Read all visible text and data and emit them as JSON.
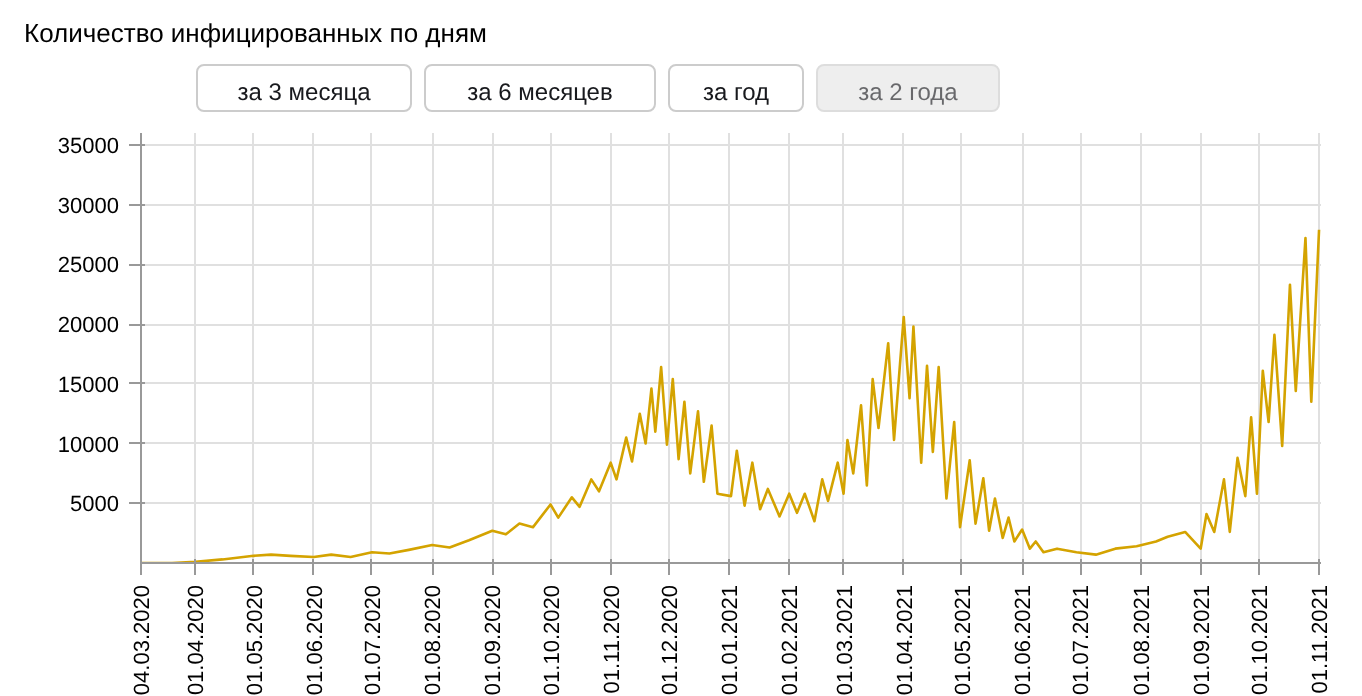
{
  "chart_data": {
    "type": "line",
    "title": "Количество инфицированных по дням",
    "annotations": [
      "за 3 месяца",
      "за 6 месяцев",
      "за год",
      "за 2 года"
    ],
    "x": [
      "2020-03-04",
      "2020-03-20",
      "2020-04-01",
      "2020-04-15",
      "2020-05-01",
      "2020-05-10",
      "2020-05-20",
      "2020-06-01",
      "2020-06-10",
      "2020-06-20",
      "2020-07-01",
      "2020-07-10",
      "2020-07-20",
      "2020-08-01",
      "2020-08-10",
      "2020-08-20",
      "2020-09-01",
      "2020-09-08",
      "2020-09-15",
      "2020-09-22",
      "2020-10-01",
      "2020-10-05",
      "2020-10-12",
      "2020-10-16",
      "2020-10-22",
      "2020-10-26",
      "2020-11-01",
      "2020-11-04",
      "2020-11-09",
      "2020-11-12",
      "2020-11-16",
      "2020-11-19",
      "2020-11-22",
      "2020-11-24",
      "2020-11-27",
      "2020-11-30",
      "2020-12-03",
      "2020-12-06",
      "2020-12-09",
      "2020-12-12",
      "2020-12-16",
      "2020-12-19",
      "2020-12-23",
      "2020-12-26",
      "2021-01-02",
      "2021-01-05",
      "2021-01-09",
      "2021-01-13",
      "2021-01-17",
      "2021-01-21",
      "2021-01-27",
      "2021-02-01",
      "2021-02-05",
      "2021-02-09",
      "2021-02-14",
      "2021-02-18",
      "2021-02-21",
      "2021-02-26",
      "2021-03-01",
      "2021-03-03",
      "2021-03-06",
      "2021-03-10",
      "2021-03-13",
      "2021-03-16",
      "2021-03-19",
      "2021-03-24",
      "2021-03-27",
      "2021-04-01",
      "2021-04-04",
      "2021-04-06",
      "2021-04-10",
      "2021-04-13",
      "2021-04-16",
      "2021-04-19",
      "2021-04-23",
      "2021-04-27",
      "2021-04-30",
      "2021-05-05",
      "2021-05-08",
      "2021-05-12",
      "2021-05-15",
      "2021-05-18",
      "2021-05-22",
      "2021-05-25",
      "2021-05-28",
      "2021-06-01",
      "2021-06-05",
      "2021-06-08",
      "2021-06-12",
      "2021-06-19",
      "2021-06-29",
      "2021-07-09",
      "2021-07-19",
      "2021-07-30",
      "2021-08-09",
      "2021-08-15",
      "2021-08-24",
      "2021-09-01",
      "2021-09-04",
      "2021-09-08",
      "2021-09-13",
      "2021-09-16",
      "2021-09-20",
      "2021-09-24",
      "2021-09-27",
      "2021-09-30",
      "2021-10-03",
      "2021-10-06",
      "2021-10-09",
      "2021-10-13",
      "2021-10-17",
      "2021-10-20",
      "2021-10-25",
      "2021-10-28",
      "2021-11-01"
    ],
    "series": [
      {
        "color": "#d4a300",
        "values": [
          0,
          0,
          100,
          300,
          600,
          700,
          600,
          500,
          700,
          500,
          900,
          800,
          1100,
          1500,
          1300,
          1900,
          2700,
          2400,
          3300,
          3000,
          4900,
          3800,
          5500,
          4700,
          7000,
          6000,
          8400,
          7000,
          10500,
          8500,
          12500,
          10000,
          14600,
          11000,
          16400,
          9900,
          15400,
          8700,
          13500,
          7500,
          12700,
          6800,
          11500,
          5800,
          5600,
          9400,
          4800,
          8400,
          4500,
          6200,
          3900,
          5800,
          4200,
          5800,
          3500,
          7000,
          5200,
          8400,
          5800,
          10300,
          7500,
          13200,
          6500,
          15400,
          11300,
          18400,
          10300,
          20600,
          13800,
          19800,
          8400,
          16500,
          9300,
          16400,
          5400,
          11800,
          3000,
          8600,
          3300,
          7100,
          2700,
          5400,
          2100,
          3800,
          1800,
          2800,
          1200,
          1800,
          900,
          1200,
          900,
          700,
          1200,
          1400,
          1800,
          2200,
          2600,
          1200,
          4100,
          2600,
          7000,
          2600,
          8800,
          5600,
          12200,
          5800,
          16100,
          11800,
          19100,
          9800,
          23300,
          14400,
          27200,
          13500,
          27900
        ]
      }
    ],
    "xlim": [
      "2020-03-04",
      "2021-11-02"
    ],
    "xticks": [
      {
        "value": "2020-03-04",
        "label": "04.03.2020"
      },
      {
        "value": "2020-04-01",
        "label": "01.04.2020"
      },
      {
        "value": "2020-05-01",
        "label": "01.05.2020"
      },
      {
        "value": "2020-06-01",
        "label": "01.06.2020"
      },
      {
        "value": "2020-07-01",
        "label": "01.07.2020"
      },
      {
        "value": "2020-08-01",
        "label": "01.08.2020"
      },
      {
        "value": "2020-09-01",
        "label": "01.09.2020"
      },
      {
        "value": "2020-10-01",
        "label": "01.10.2020"
      },
      {
        "value": "2020-11-01",
        "label": "01.11.2020"
      },
      {
        "value": "2020-12-01",
        "label": "01.12.2020"
      },
      {
        "value": "2021-01-01",
        "label": "01.01.2021"
      },
      {
        "value": "2021-02-01",
        "label": "01.02.2021"
      },
      {
        "value": "2021-03-01",
        "label": "01.03.2021"
      },
      {
        "value": "2021-04-01",
        "label": "01.04.2021"
      },
      {
        "value": "2021-05-01",
        "label": "01.05.2021"
      },
      {
        "value": "2021-06-01",
        "label": "01.06.2021"
      },
      {
        "value": "2021-07-01",
        "label": "01.07.2021"
      },
      {
        "value": "2021-08-01",
        "label": "01.08.2021"
      },
      {
        "value": "2021-09-01",
        "label": "01.09.2021"
      },
      {
        "value": "2021-10-01",
        "label": "01.10.2021"
      },
      {
        "value": "2021-11-01",
        "label": "01.11.2021"
      }
    ],
    "ylim": [
      0,
      36000
    ],
    "yticks": [
      5000,
      10000,
      15000,
      20000,
      25000,
      30000,
      35000
    ],
    "grid": true,
    "line_style": "solid"
  }
}
